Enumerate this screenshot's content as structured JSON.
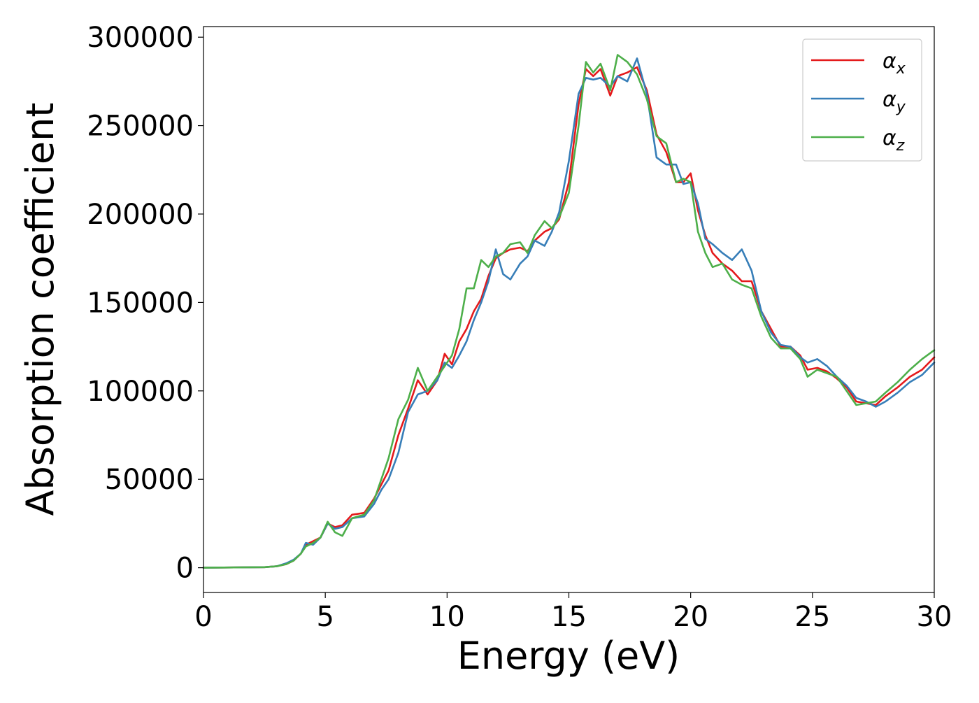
{
  "chart_data": {
    "type": "line",
    "title": "",
    "xlabel": "Energy (eV)",
    "ylabel": "Absorption coefficient",
    "xlim": [
      0,
      30
    ],
    "ylim": [
      -14000,
      306000
    ],
    "x_ticks": [
      0,
      5,
      10,
      15,
      20,
      25,
      30
    ],
    "y_ticks": [
      0,
      50000,
      100000,
      150000,
      200000,
      250000,
      300000
    ],
    "grid": false,
    "legend_position": "top-right",
    "series": [
      {
        "name": "αx",
        "name_base": "α",
        "name_sub": "x",
        "color": "#e41a1c",
        "points": [
          [
            0,
            0
          ],
          [
            2.5,
            300
          ],
          [
            3.0,
            800
          ],
          [
            3.4,
            2000
          ],
          [
            3.7,
            4000
          ],
          [
            4.0,
            8000
          ],
          [
            4.2,
            13000
          ],
          [
            4.5,
            15000
          ],
          [
            4.8,
            17000
          ],
          [
            5.1,
            25000
          ],
          [
            5.4,
            23000
          ],
          [
            5.7,
            24000
          ],
          [
            6.1,
            30000
          ],
          [
            6.6,
            31000
          ],
          [
            7.0,
            39000
          ],
          [
            7.3,
            47000
          ],
          [
            7.6,
            55000
          ],
          [
            8.0,
            75000
          ],
          [
            8.4,
            90000
          ],
          [
            8.8,
            106000
          ],
          [
            9.2,
            98000
          ],
          [
            9.6,
            106000
          ],
          [
            9.9,
            121000
          ],
          [
            10.2,
            115000
          ],
          [
            10.5,
            128000
          ],
          [
            10.8,
            135000
          ],
          [
            11.1,
            145000
          ],
          [
            11.4,
            152000
          ],
          [
            11.7,
            165000
          ],
          [
            12.0,
            175000
          ],
          [
            12.3,
            178000
          ],
          [
            12.6,
            180000
          ],
          [
            13.0,
            181000
          ],
          [
            13.3,
            179000
          ],
          [
            13.6,
            185000
          ],
          [
            14.0,
            190000
          ],
          [
            14.3,
            192000
          ],
          [
            14.6,
            197000
          ],
          [
            15.0,
            218000
          ],
          [
            15.4,
            262000
          ],
          [
            15.7,
            282000
          ],
          [
            16.0,
            278000
          ],
          [
            16.3,
            282000
          ],
          [
            16.7,
            267000
          ],
          [
            17.0,
            278000
          ],
          [
            17.4,
            280000
          ],
          [
            17.8,
            283000
          ],
          [
            18.2,
            270000
          ],
          [
            18.6,
            245000
          ],
          [
            19.0,
            235000
          ],
          [
            19.4,
            218000
          ],
          [
            19.7,
            218000
          ],
          [
            20.0,
            223000
          ],
          [
            20.3,
            202000
          ],
          [
            20.6,
            188000
          ],
          [
            20.9,
            178000
          ],
          [
            21.3,
            172000
          ],
          [
            21.7,
            168000
          ],
          [
            22.1,
            162000
          ],
          [
            22.5,
            162000
          ],
          [
            22.9,
            145000
          ],
          [
            23.3,
            135000
          ],
          [
            23.7,
            125000
          ],
          [
            24.1,
            125000
          ],
          [
            24.5,
            120000
          ],
          [
            24.8,
            112000
          ],
          [
            25.2,
            113000
          ],
          [
            25.6,
            111000
          ],
          [
            26.0,
            107000
          ],
          [
            26.4,
            102000
          ],
          [
            26.8,
            94000
          ],
          [
            27.2,
            93000
          ],
          [
            27.6,
            92000
          ],
          [
            28.0,
            97000
          ],
          [
            28.5,
            102000
          ],
          [
            29.0,
            108000
          ],
          [
            29.5,
            112000
          ],
          [
            30.0,
            119000
          ]
        ]
      },
      {
        "name": "αy",
        "name_base": "α",
        "name_sub": "y",
        "color": "#377eb8",
        "points": [
          [
            0,
            0
          ],
          [
            2.5,
            300
          ],
          [
            3.0,
            800
          ],
          [
            3.4,
            2500
          ],
          [
            3.7,
            4500
          ],
          [
            4.0,
            8000
          ],
          [
            4.2,
            14000
          ],
          [
            4.5,
            13000
          ],
          [
            4.8,
            17000
          ],
          [
            5.1,
            25000
          ],
          [
            5.4,
            22000
          ],
          [
            5.7,
            23000
          ],
          [
            6.1,
            28000
          ],
          [
            6.6,
            29000
          ],
          [
            7.0,
            36000
          ],
          [
            7.3,
            44000
          ],
          [
            7.6,
            50000
          ],
          [
            8.0,
            65000
          ],
          [
            8.4,
            88000
          ],
          [
            8.8,
            98000
          ],
          [
            9.2,
            100000
          ],
          [
            9.6,
            106000
          ],
          [
            9.9,
            116000
          ],
          [
            10.2,
            113000
          ],
          [
            10.5,
            120000
          ],
          [
            10.8,
            128000
          ],
          [
            11.1,
            140000
          ],
          [
            11.4,
            150000
          ],
          [
            11.7,
            162000
          ],
          [
            12.0,
            180000
          ],
          [
            12.3,
            166000
          ],
          [
            12.6,
            163000
          ],
          [
            13.0,
            172000
          ],
          [
            13.3,
            176000
          ],
          [
            13.6,
            185000
          ],
          [
            14.0,
            182000
          ],
          [
            14.3,
            190000
          ],
          [
            14.6,
            201000
          ],
          [
            15.0,
            230000
          ],
          [
            15.4,
            268000
          ],
          [
            15.7,
            277000
          ],
          [
            16.0,
            276000
          ],
          [
            16.3,
            277000
          ],
          [
            16.7,
            272000
          ],
          [
            17.0,
            278000
          ],
          [
            17.4,
            275000
          ],
          [
            17.8,
            288000
          ],
          [
            18.2,
            268000
          ],
          [
            18.6,
            232000
          ],
          [
            19.0,
            228000
          ],
          [
            19.4,
            228000
          ],
          [
            19.7,
            217000
          ],
          [
            20.0,
            218000
          ],
          [
            20.3,
            206000
          ],
          [
            20.6,
            186000
          ],
          [
            20.9,
            183000
          ],
          [
            21.3,
            178000
          ],
          [
            21.7,
            174000
          ],
          [
            22.1,
            180000
          ],
          [
            22.5,
            168000
          ],
          [
            22.9,
            145000
          ],
          [
            23.3,
            133000
          ],
          [
            23.7,
            126000
          ],
          [
            24.1,
            125000
          ],
          [
            24.5,
            119000
          ],
          [
            24.8,
            116000
          ],
          [
            25.2,
            118000
          ],
          [
            25.6,
            114000
          ],
          [
            26.0,
            108000
          ],
          [
            26.4,
            103000
          ],
          [
            26.8,
            96000
          ],
          [
            27.2,
            94000
          ],
          [
            27.6,
            91000
          ],
          [
            28.0,
            94000
          ],
          [
            28.5,
            99000
          ],
          [
            29.0,
            105000
          ],
          [
            29.5,
            109000
          ],
          [
            30.0,
            116000
          ]
        ]
      },
      {
        "name": "αz",
        "name_base": "α",
        "name_sub": "z",
        "color": "#4daf4a",
        "points": [
          [
            0,
            0
          ],
          [
            2.5,
            300
          ],
          [
            3.0,
            800
          ],
          [
            3.4,
            2000
          ],
          [
            3.7,
            4000
          ],
          [
            4.0,
            8000
          ],
          [
            4.2,
            12000
          ],
          [
            4.5,
            14000
          ],
          [
            4.8,
            17000
          ],
          [
            5.1,
            26000
          ],
          [
            5.4,
            20000
          ],
          [
            5.7,
            18000
          ],
          [
            6.1,
            28000
          ],
          [
            6.6,
            30000
          ],
          [
            7.0,
            38000
          ],
          [
            7.3,
            50000
          ],
          [
            7.6,
            62000
          ],
          [
            8.0,
            84000
          ],
          [
            8.4,
            95000
          ],
          [
            8.8,
            113000
          ],
          [
            9.2,
            100000
          ],
          [
            9.6,
            108000
          ],
          [
            9.9,
            114000
          ],
          [
            10.2,
            120000
          ],
          [
            10.5,
            135000
          ],
          [
            10.8,
            158000
          ],
          [
            11.1,
            158000
          ],
          [
            11.4,
            174000
          ],
          [
            11.7,
            170000
          ],
          [
            12.0,
            176000
          ],
          [
            12.3,
            178000
          ],
          [
            12.6,
            183000
          ],
          [
            13.0,
            184000
          ],
          [
            13.3,
            178000
          ],
          [
            13.6,
            188000
          ],
          [
            14.0,
            196000
          ],
          [
            14.3,
            192000
          ],
          [
            14.6,
            198000
          ],
          [
            15.0,
            212000
          ],
          [
            15.4,
            250000
          ],
          [
            15.7,
            286000
          ],
          [
            16.0,
            280000
          ],
          [
            16.3,
            285000
          ],
          [
            16.7,
            270000
          ],
          [
            17.0,
            290000
          ],
          [
            17.4,
            286000
          ],
          [
            17.8,
            279000
          ],
          [
            18.2,
            265000
          ],
          [
            18.6,
            244000
          ],
          [
            19.0,
            240000
          ],
          [
            19.4,
            218000
          ],
          [
            19.7,
            220000
          ],
          [
            20.0,
            218000
          ],
          [
            20.3,
            190000
          ],
          [
            20.6,
            178000
          ],
          [
            20.9,
            170000
          ],
          [
            21.3,
            172000
          ],
          [
            21.7,
            163000
          ],
          [
            22.1,
            160000
          ],
          [
            22.5,
            158000
          ],
          [
            22.9,
            142000
          ],
          [
            23.3,
            130000
          ],
          [
            23.7,
            124000
          ],
          [
            24.1,
            124000
          ],
          [
            24.5,
            118000
          ],
          [
            24.8,
            108000
          ],
          [
            25.2,
            112000
          ],
          [
            25.6,
            110000
          ],
          [
            26.0,
            108000
          ],
          [
            26.4,
            100000
          ],
          [
            26.8,
            92000
          ],
          [
            27.2,
            93000
          ],
          [
            27.6,
            94000
          ],
          [
            28.0,
            99000
          ],
          [
            28.5,
            105000
          ],
          [
            29.0,
            112000
          ],
          [
            29.5,
            118000
          ],
          [
            30.0,
            123000
          ]
        ]
      }
    ]
  }
}
